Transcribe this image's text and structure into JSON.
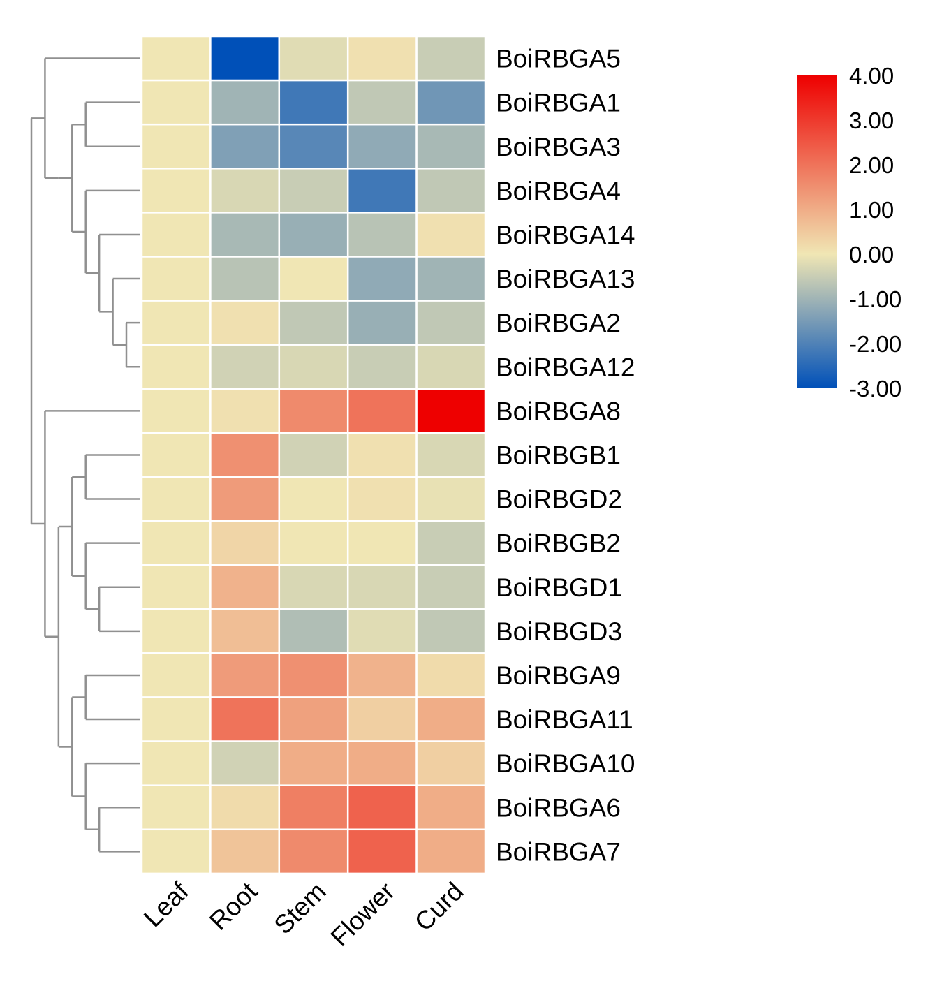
{
  "chart_data": {
    "type": "heatmap",
    "title": "",
    "x": [
      "Leaf",
      "Root",
      "Stem",
      "Flower",
      "Curd"
    ],
    "y": [
      "BoiRBGA5",
      "BoiRBGA1",
      "BoiRBGA3",
      "BoiRBGA4",
      "BoiRBGA14",
      "BoiRBGA13",
      "BoiRBGA2",
      "BoiRBGA12",
      "BoiRBGA8",
      "BoiRBGB1",
      "BoiRBGD2",
      "BoiRBGB2",
      "BoiRBGD1",
      "BoiRBGD3",
      "BoiRBGA9",
      "BoiRBGA11",
      "BoiRBGA10",
      "BoiRBGA6",
      "BoiRBGA7"
    ],
    "values": [
      [
        0,
        -3.0,
        -0.2,
        0.1,
        -0.5
      ],
      [
        0,
        -1.0,
        -2.2,
        -0.6,
        -1.6
      ],
      [
        0,
        -1.4,
        -1.9,
        -1.2,
        -0.9
      ],
      [
        0,
        -0.3,
        -0.5,
        -2.2,
        -0.6
      ],
      [
        0,
        -0.9,
        -1.1,
        -0.7,
        0.1
      ],
      [
        0,
        -0.7,
        0,
        -1.2,
        -1.0
      ],
      [
        0,
        0.1,
        -0.6,
        -1.1,
        -0.6
      ],
      [
        0,
        -0.4,
        -0.3,
        -0.5,
        -0.3
      ],
      [
        0,
        0.1,
        1.6,
        2.0,
        4.0
      ],
      [
        0,
        1.5,
        -0.4,
        0.1,
        -0.3
      ],
      [
        0,
        1.3,
        0,
        0.1,
        -0.1
      ],
      [
        0,
        0.3,
        0,
        0,
        -0.5
      ],
      [
        0,
        0.9,
        -0.3,
        -0.3,
        -0.5
      ],
      [
        0,
        0.7,
        -0.8,
        -0.2,
        -0.6
      ],
      [
        0,
        1.3,
        1.5,
        0.9,
        0.2
      ],
      [
        0,
        2.0,
        1.2,
        0.4,
        1.0
      ],
      [
        0,
        -0.4,
        1.0,
        1.0,
        0.4
      ],
      [
        0,
        0.2,
        1.8,
        2.3,
        1.0
      ],
      [
        0,
        0.6,
        1.6,
        2.3,
        1.0
      ]
    ],
    "colorbar": {
      "ticks": [
        "4.00",
        "3.00",
        "2.00",
        "1.00",
        "0.00",
        "-1.00",
        "-2.00",
        "-3.00"
      ],
      "min": -3,
      "max": 4,
      "colors": {
        "low": "#0050b8",
        "mid": "#f0e6b4",
        "high": "#ee0000"
      }
    },
    "dendrogram": {
      "style_color": "#909090",
      "tree": [
        [
          0,
          [
            [
              [
                1,
                2
              ],
              [
                3,
                [
                  4,
                  [
                    5,
                    [
                      6,
                      7
                    ]
                  ]
                ]
              ]
            ]
          ]
        ],
        [
          8,
          [
            [
              [
                9,
                10
              ],
              [
                11,
                [
                  12,
                  13
                ]
              ]
            ],
            [
              [
                14,
                15
              ],
              [
                16,
                [
                  17,
                  18
                ]
              ]
            ]
          ]
        ]
      ]
    }
  }
}
